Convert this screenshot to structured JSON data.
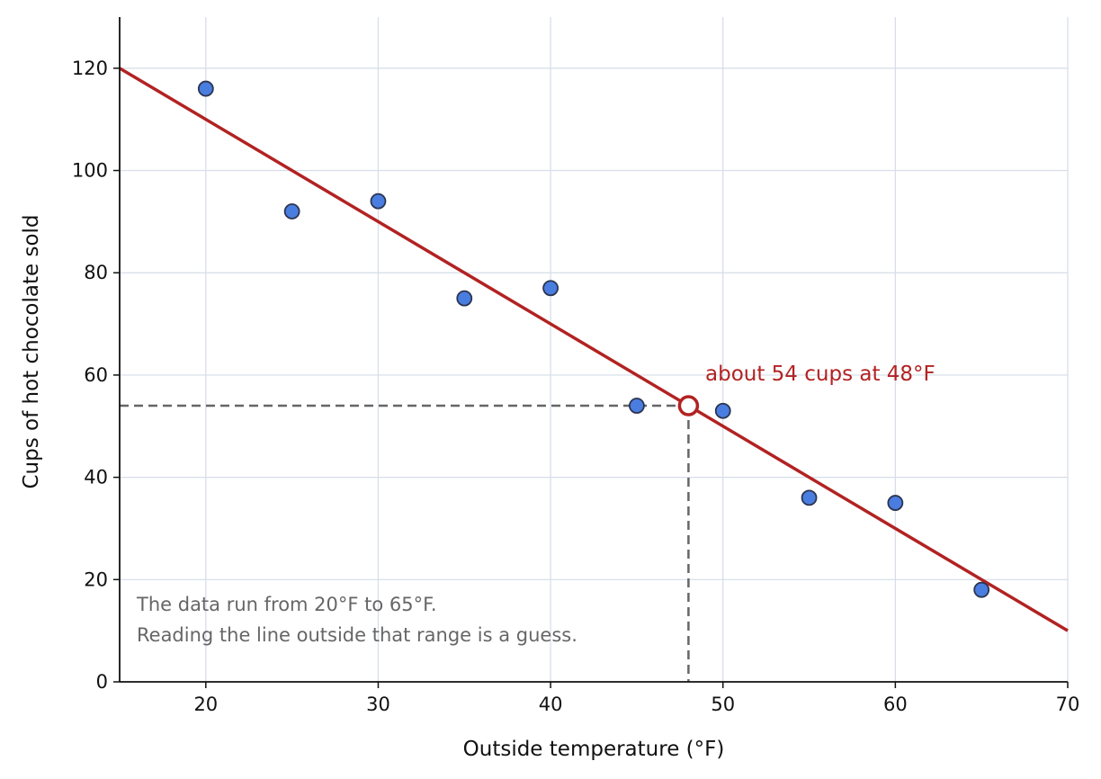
{
  "chart_data": {
    "type": "scatter",
    "xlabel": "Outside temperature (°F)",
    "ylabel": "Cups of hot chocolate sold",
    "xlim": [
      15,
      70
    ],
    "ylim": [
      0,
      130
    ],
    "x_ticks": [
      20,
      30,
      40,
      50,
      60,
      70
    ],
    "y_ticks": [
      0,
      20,
      40,
      60,
      80,
      100,
      120
    ],
    "grid": true,
    "points": [
      {
        "x": 20,
        "y": 116
      },
      {
        "x": 25,
        "y": 92
      },
      {
        "x": 30,
        "y": 94
      },
      {
        "x": 35,
        "y": 75
      },
      {
        "x": 40,
        "y": 77
      },
      {
        "x": 45,
        "y": 54
      },
      {
        "x": 50,
        "y": 53
      },
      {
        "x": 55,
        "y": 36
      },
      {
        "x": 60,
        "y": 35
      },
      {
        "x": 65,
        "y": 18
      }
    ],
    "trend_line": {
      "x1": 15,
      "y1": 120,
      "x2": 70,
      "y2": 10
    },
    "highlight": {
      "x": 48,
      "y": 54,
      "label": "about 54 cups at 48°F"
    },
    "note_lines": [
      "The data run from 20°F to 65°F.",
      "Reading the line outside that range is a guess."
    ],
    "colors": {
      "point_fill": "#4a7de0",
      "point_edge": "#2b3550",
      "trend": "#b22222",
      "guide": "#666666",
      "note": "#666666"
    }
  }
}
